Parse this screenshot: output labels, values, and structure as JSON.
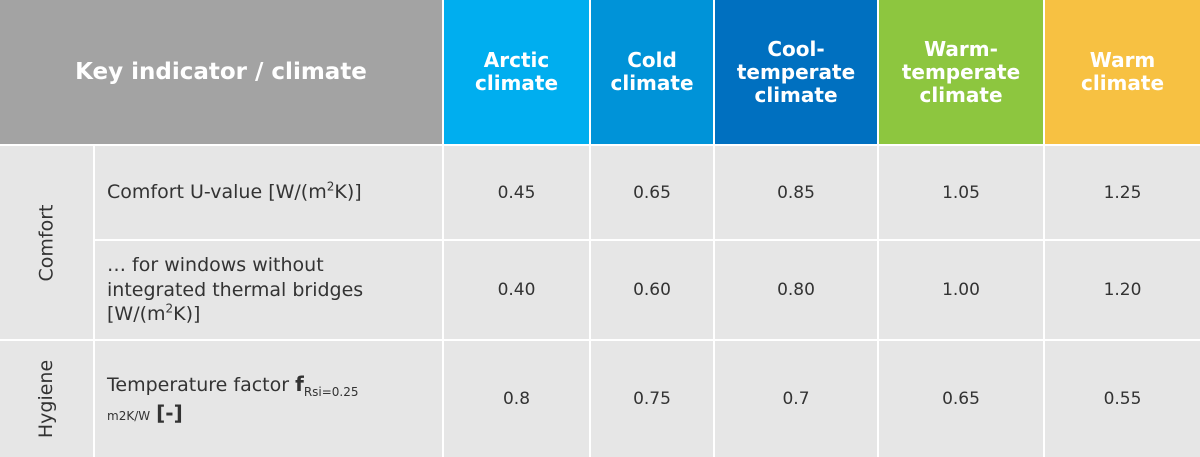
{
  "header": {
    "key_label": "Key indicator / climate",
    "climates": [
      {
        "label": "Arctic\nclimate",
        "color": "#00aeef"
      },
      {
        "label": "Cold\nclimate",
        "color": "#0093d8"
      },
      {
        "label": "Cool-\ntemperate\nclimate",
        "color": "#0070c0"
      },
      {
        "label": "Warm-\ntemperate\nclimate",
        "color": "#8dc63f"
      },
      {
        "label": "Warm\nclimate",
        "color": "#f7c142"
      }
    ]
  },
  "groups": {
    "comfort": "Comfort",
    "hygiene": "Hygiene"
  },
  "rows": [
    {
      "label_main": "Comfort U-value [W/(m",
      "label_sup": "2",
      "label_end": "K)]",
      "values": [
        "0.45",
        "0.65",
        "0.85",
        "1.05",
        "1.25"
      ]
    },
    {
      "label_line1": "… for windows without",
      "label_line2": "integrated thermal bridges",
      "label_line3_main": "[W/(m",
      "label_line3_sup": "2",
      "label_line3_end": "K)]",
      "values": [
        "0.40",
        "0.60",
        "0.80",
        "1.00",
        "1.20"
      ]
    },
    {
      "label_text": "Temperature factor ",
      "label_f": "f",
      "label_sub1": "Rsi=0.25",
      "label_sub2": "m2K/W",
      "label_unit": "[-]",
      "values": [
        "0.8",
        "0.75",
        "0.7",
        "0.65",
        "0.55"
      ]
    }
  ],
  "colors": {
    "key_header_bg": "#a3a3a3",
    "body_bg": "#e6e6e6",
    "text": "#333333"
  }
}
